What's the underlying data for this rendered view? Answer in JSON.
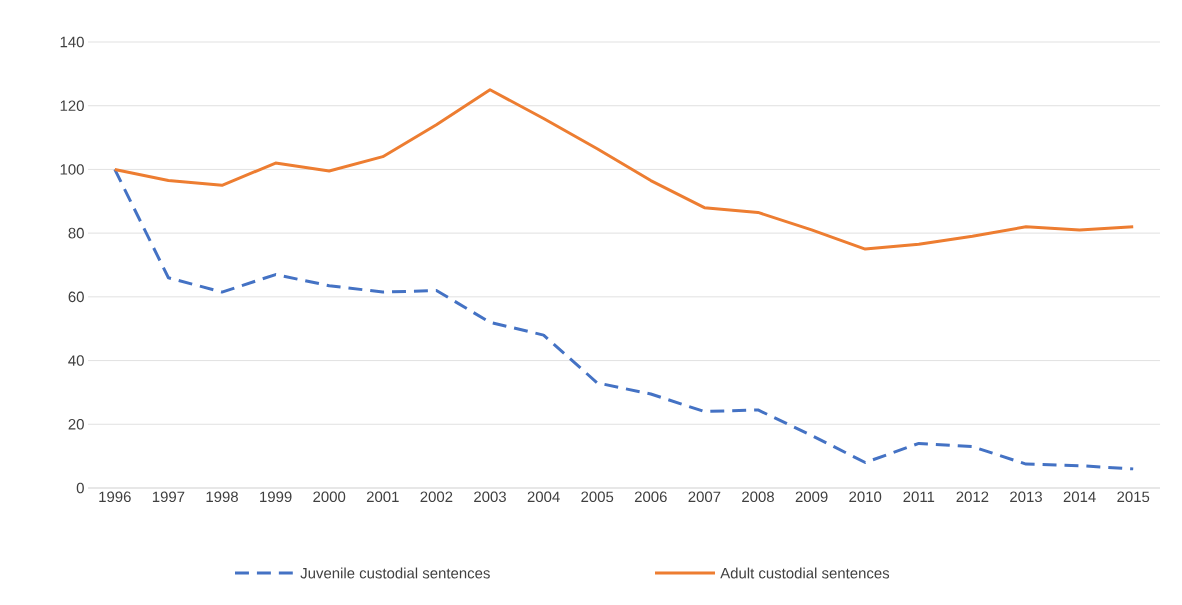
{
  "chart_data": {
    "type": "line",
    "categories": [
      "1996",
      "1997",
      "1998",
      "1999",
      "2000",
      "2001",
      "2002",
      "2003",
      "2004",
      "2005",
      "2006",
      "2007",
      "2008",
      "2009",
      "2010",
      "2011",
      "2012",
      "2013",
      "2014",
      "2015"
    ],
    "series": [
      {
        "name": "Juvenile custodial sentences",
        "color": "#4472c4",
        "line_style": "dashed",
        "values": [
          100,
          66,
          61.5,
          67,
          63.5,
          61.5,
          62,
          52,
          48,
          33,
          29.5,
          24,
          24.5,
          16.5,
          8,
          14,
          13,
          7.5,
          7,
          6
        ]
      },
      {
        "name": "Adult custodial sentences",
        "color": "#ed7d31",
        "line_style": "solid",
        "values": [
          100,
          96.5,
          95,
          102,
          99.5,
          104,
          114,
          125,
          116,
          106.5,
          96.5,
          88,
          86.5,
          81,
          75,
          76.5,
          79,
          82,
          81,
          82
        ]
      }
    ],
    "ylim": [
      0,
      140
    ],
    "yticks": [
      0,
      20,
      40,
      60,
      80,
      100,
      120,
      140
    ],
    "grid": "y",
    "legend": "bottom"
  }
}
